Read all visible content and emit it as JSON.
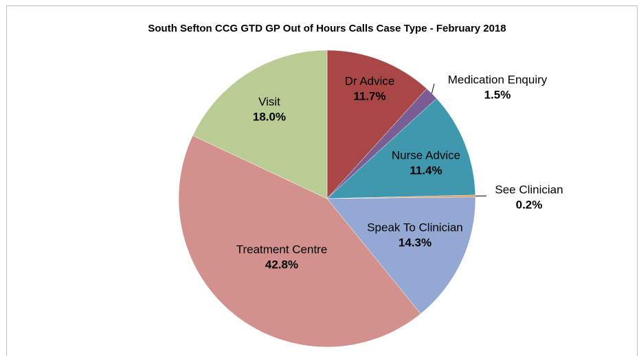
{
  "chart_data": {
    "type": "pie",
    "title": "South Sefton CCG GTD GP Out of Hours Calls Case Type - February 2018",
    "categories": [
      "Dr Advice",
      "Medication Enquiry",
      "Nurse Advice",
      "See Clinician",
      "Speak To Clinician",
      "Treatment Centre",
      "Visit"
    ],
    "values": [
      11.7,
      1.5,
      11.4,
      0.2,
      14.3,
      42.8,
      18.0
    ],
    "value_labels": [
      "11.7%",
      "1.5%",
      "11.4%",
      "0.2%",
      "14.3%",
      "42.8%",
      "18.0%"
    ],
    "colors": [
      "#a94646",
      "#7b5d95",
      "#3f98ae",
      "#e8913a",
      "#93a9d3",
      "#d3918e",
      "#b9cc94"
    ]
  }
}
